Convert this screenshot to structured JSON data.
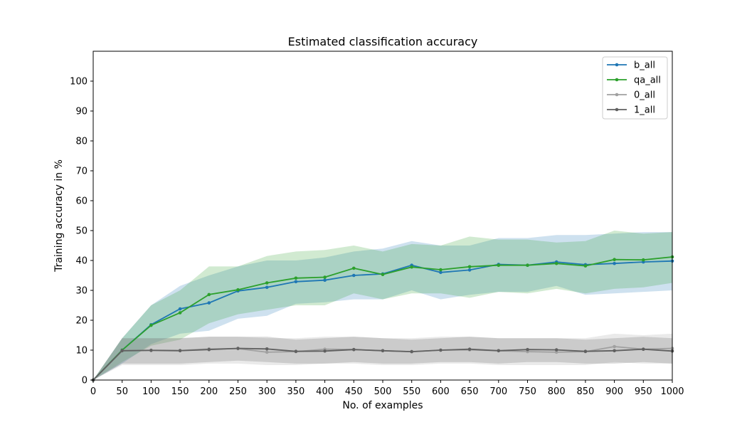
{
  "chart_data": {
    "type": "line",
    "title": "Estimated classification accuracy",
    "xlabel": "No. of examples",
    "ylabel": "Training accuracy in %",
    "xlim": [
      0,
      1000
    ],
    "ylim": [
      0,
      110
    ],
    "x_ticks": [
      0,
      50,
      100,
      150,
      200,
      250,
      300,
      350,
      400,
      450,
      500,
      550,
      600,
      650,
      700,
      750,
      800,
      850,
      900,
      950,
      1000
    ],
    "y_ticks": [
      0,
      10,
      20,
      30,
      40,
      50,
      60,
      70,
      80,
      90,
      100
    ],
    "grid": false,
    "legend_position": "top-right",
    "x": [
      0,
      50,
      100,
      150,
      200,
      250,
      300,
      350,
      400,
      450,
      500,
      550,
      600,
      650,
      700,
      750,
      800,
      850,
      900,
      950,
      1000
    ],
    "series": [
      {
        "name": "b_all",
        "color": "#1f77b4",
        "values": [
          0,
          10,
          18.5,
          23.8,
          25.8,
          29.8,
          31,
          32.9,
          33.4,
          35,
          35.5,
          38.4,
          36,
          36.8,
          38.7,
          38.4,
          39.5,
          38.6,
          39,
          39.5,
          39.8
        ],
        "lower": [
          0,
          5.5,
          12,
          15.5,
          16.5,
          20.5,
          21.5,
          25.5,
          26,
          27,
          27,
          30,
          27,
          28.5,
          29.5,
          29.5,
          31.5,
          28.5,
          29,
          29.5,
          30
        ],
        "upper": [
          0,
          14,
          25,
          31.5,
          35,
          38,
          40,
          40,
          41,
          43,
          44,
          46.5,
          45,
          45,
          47.5,
          47.5,
          48.5,
          48.5,
          49,
          49.5,
          49.5
        ]
      },
      {
        "name": "qa_all",
        "color": "#2ca02c",
        "values": [
          0,
          10,
          18.3,
          22.5,
          28.6,
          30.2,
          32.5,
          34.1,
          34.4,
          37.4,
          35.3,
          37.8,
          36.9,
          37.9,
          38.4,
          38.4,
          39,
          38.2,
          40.3,
          40.2,
          41.2
        ],
        "lower": [
          0,
          6,
          11.5,
          13.5,
          19,
          22,
          23.5,
          25,
          25,
          29,
          27,
          29,
          29,
          27.5,
          29.5,
          29,
          30.5,
          29,
          30.5,
          31,
          32.5
        ],
        "upper": [
          0,
          14,
          25,
          30,
          38,
          38,
          41.5,
          43,
          43.5,
          45,
          43,
          45.5,
          45,
          48,
          47,
          47,
          46,
          46.5,
          50,
          49,
          49.5
        ]
      },
      {
        "name": "0_all",
        "color": "#a0a0a0",
        "values": [
          0,
          9.8,
          10,
          9.9,
          10.4,
          10.5,
          9.3,
          9.5,
          10.3,
          10.2,
          9.8,
          9.5,
          10,
          10.1,
          9.8,
          9.5,
          9.3,
          9.5,
          11.2,
          10.3,
          10.6
        ],
        "lower": [
          0,
          5,
          5,
          5,
          5.5,
          5.5,
          5,
          5,
          5.5,
          5.5,
          5,
          5,
          5.5,
          5.5,
          5,
          5,
          5,
          5,
          6,
          5.5,
          5.5
        ],
        "upper": [
          0,
          14,
          14,
          14,
          14.5,
          14.5,
          14,
          14,
          14.5,
          14.5,
          14,
          14,
          14.5,
          14.5,
          14,
          14,
          14,
          14,
          15.5,
          15,
          15.5
        ]
      },
      {
        "name": "1_all",
        "color": "#606060",
        "values": [
          0,
          9.8,
          9.9,
          9.8,
          10.2,
          10.6,
          10.4,
          9.6,
          9.7,
          10.2,
          9.8,
          9.5,
          10,
          10.3,
          9.8,
          10.2,
          10.1,
          9.6,
          9.8,
          10.3,
          9.7
        ],
        "lower": [
          0,
          5.5,
          5.5,
          5.5,
          6,
          6.5,
          6,
          5.5,
          5.5,
          6,
          5.5,
          5.5,
          6,
          6,
          5.5,
          6,
          6,
          5.5,
          5.5,
          6,
          5.5
        ],
        "upper": [
          0,
          14,
          14,
          14,
          14.5,
          14.5,
          14.5,
          13.5,
          14,
          14.5,
          14,
          13.5,
          14,
          14.5,
          14,
          14,
          14,
          13.5,
          14,
          14.5,
          14
        ]
      }
    ]
  }
}
